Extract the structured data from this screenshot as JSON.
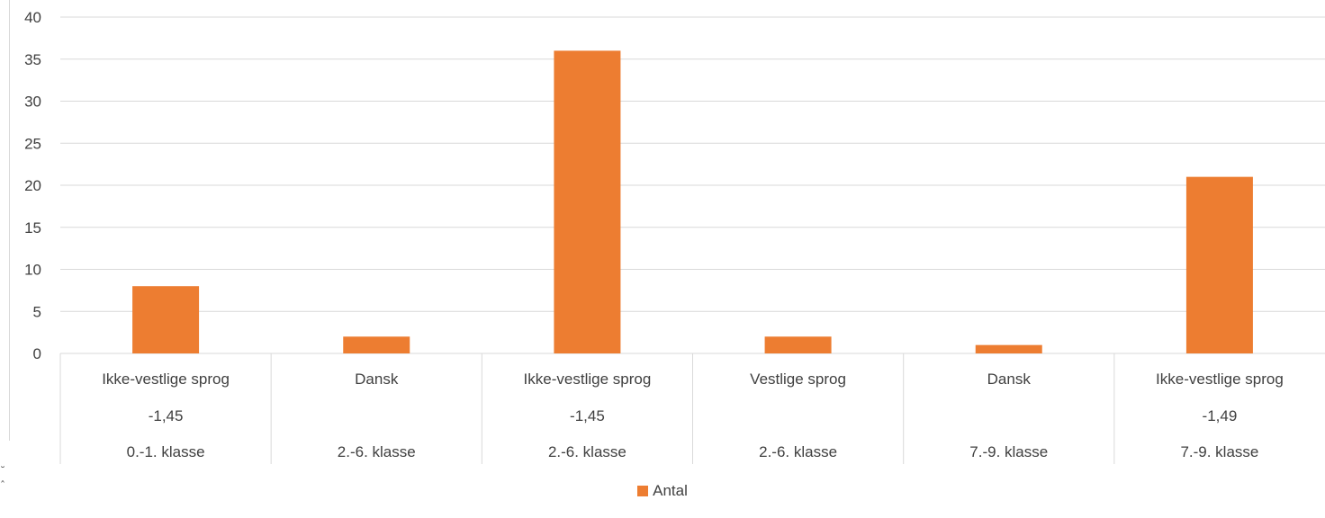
{
  "chart_data": {
    "type": "bar",
    "categories": [
      {
        "level1": "Ikke-vestlige sprog",
        "level2": "-1,45",
        "level3": "0.-1. klasse"
      },
      {
        "level1": "Dansk",
        "level2": "",
        "level3": "2.-6. klasse"
      },
      {
        "level1": "Ikke-vestlige sprog",
        "level2": "-1,45",
        "level3": "2.-6. klasse"
      },
      {
        "level1": "Vestlige sprog",
        "level2": "",
        "level3": "2.-6. klasse"
      },
      {
        "level1": "Dansk",
        "level2": "",
        "level3": "7.-9. klasse"
      },
      {
        "level1": "Ikke-vestlige sprog",
        "level2": "-1,49",
        "level3": "7.-9. klasse"
      }
    ],
    "series": [
      {
        "name": "Antal",
        "values": [
          8,
          2,
          36,
          2,
          1,
          21
        ],
        "color": "#ed7d31"
      }
    ],
    "ylim": [
      0,
      40
    ],
    "yticks": [
      "0",
      "5",
      "10",
      "15",
      "20",
      "25",
      "30",
      "35",
      "40"
    ],
    "grid": true,
    "legend_position": "bottom",
    "title": "",
    "xlabel": "",
    "ylabel": ""
  },
  "colors": {
    "bar": "#ed7d31",
    "grid": "#d9d9d9",
    "text": "#404040"
  },
  "scroll_marks": [
    "˘",
    "ˆ"
  ]
}
